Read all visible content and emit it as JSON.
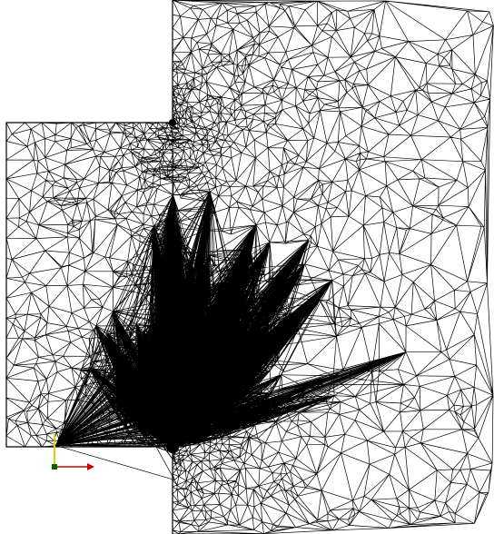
{
  "viewport": {
    "background": "#ffffff",
    "mesh_color": "#000000",
    "element_type": "triangular",
    "refinement_zones": [
      "top-corner",
      "bottom-corner"
    ]
  },
  "axis_triad": {
    "x_axis_color": "#cc0000",
    "y_axis_color": "#e0d000",
    "origin_color": "#006600",
    "icon": "axis-triad-icon"
  }
}
